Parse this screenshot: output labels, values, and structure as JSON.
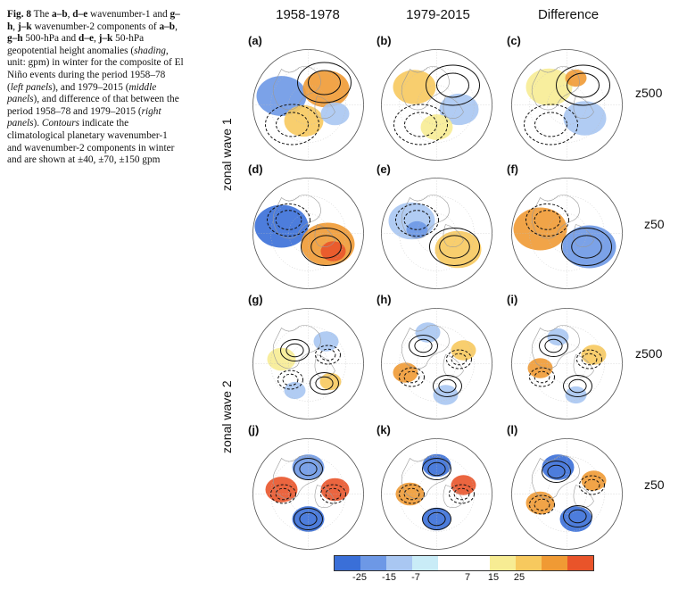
{
  "caption": {
    "fig": "Fig. 8",
    "text_html": "The <b>a–b</b>, <b>d–e</b> wavenumber-1 and <b>g–h</b>, <b>j–k</b> wavenumber-2 components of <b>a–b</b>, <b>g–h</b> 500-hPa and <b>d–e</b>, <b>j–k</b> 50-hPa geopotential height anomalies (<i>shading</i>, unit: gpm) in winter for the composite of El Niño events during the period 1958–78 (<i>left panels</i>), and 1979–2015 (<i>middle panels</i>), and difference of that between the period 1958–78 and 1979–2015 (<i>right panels</i>). <i>Contours</i> indicate the climatological planetary wavenumber-1 and wavenumber-2 components in winter and are shown at ±40, ±70, ±150 gpm"
  },
  "columns": [
    "1958-1978",
    "1979-2015",
    "Difference"
  ],
  "rows": [
    "z500",
    "z50",
    "z500",
    "z50"
  ],
  "groups": [
    "zonal wave 1",
    "zonal wave 2"
  ],
  "panels": [
    "(a)",
    "(b)",
    "(c)",
    "(d)",
    "(e)",
    "(f)",
    "(g)",
    "(h)",
    "(i)",
    "(j)",
    "(k)",
    "(l)"
  ],
  "colorbar": {
    "colors": [
      "#3a6fd8",
      "#6d98e6",
      "#a9c7f2",
      "#c9ecf7",
      "#ffffff",
      "#ffffff",
      "#f7ec93",
      "#f7c95e",
      "#f09a34",
      "#e9542a"
    ],
    "ticks": [
      "-25",
      "-15",
      "-7",
      "7",
      "15",
      "25"
    ]
  }
}
